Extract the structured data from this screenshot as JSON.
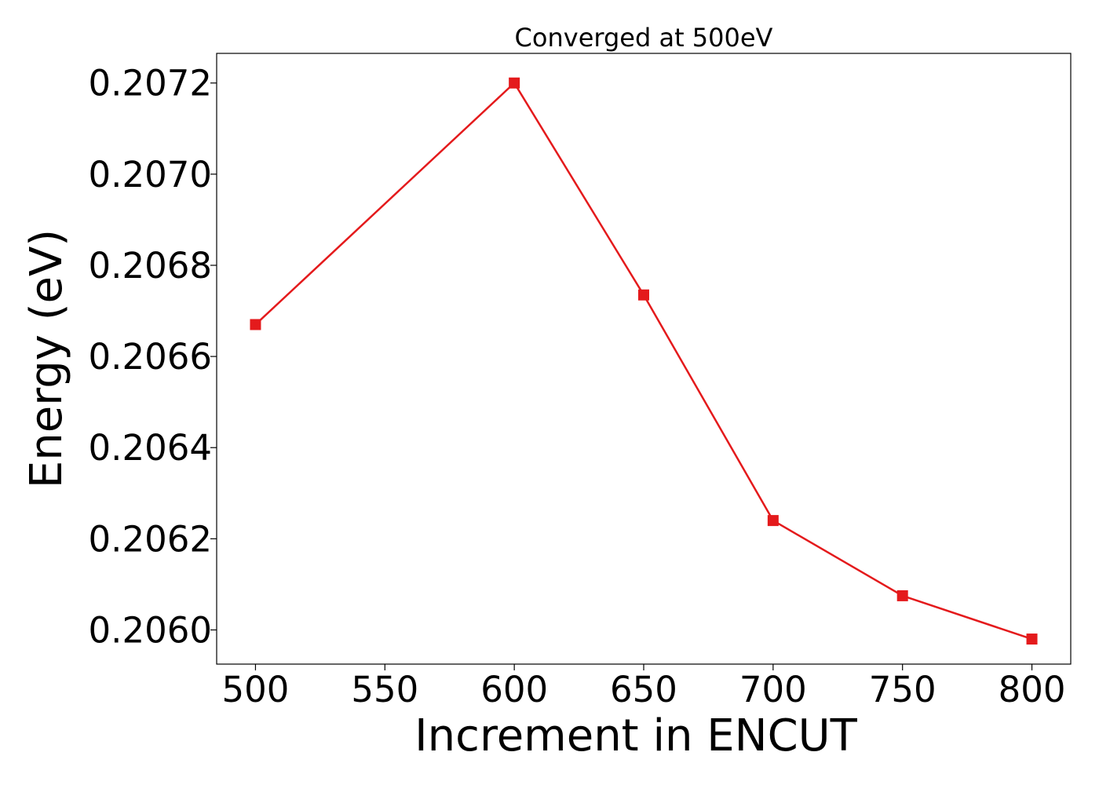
{
  "chart_data": {
    "type": "line",
    "title": "Converged at 500eV",
    "xlabel": "Increment in ENCUT",
    "ylabel": "Energy (eV)",
    "x": [
      500,
      600,
      650,
      700,
      750,
      800
    ],
    "series": [
      {
        "values": [
          0.20667,
          0.2072,
          0.206735,
          0.20624,
          0.206075,
          0.20598
        ],
        "color": "#e41a1c",
        "marker": "square"
      }
    ],
    "xlim": [
      485,
      815
    ],
    "ylim": [
      0.205925,
      0.207265
    ],
    "xticks": [
      "500",
      "550",
      "600",
      "650",
      "700",
      "750",
      "800"
    ],
    "yticks": [
      "0.2060",
      "0.2062",
      "0.2064",
      "0.2066",
      "0.2068",
      "0.2070",
      "0.2072"
    ],
    "grid": false,
    "legend": "none"
  }
}
